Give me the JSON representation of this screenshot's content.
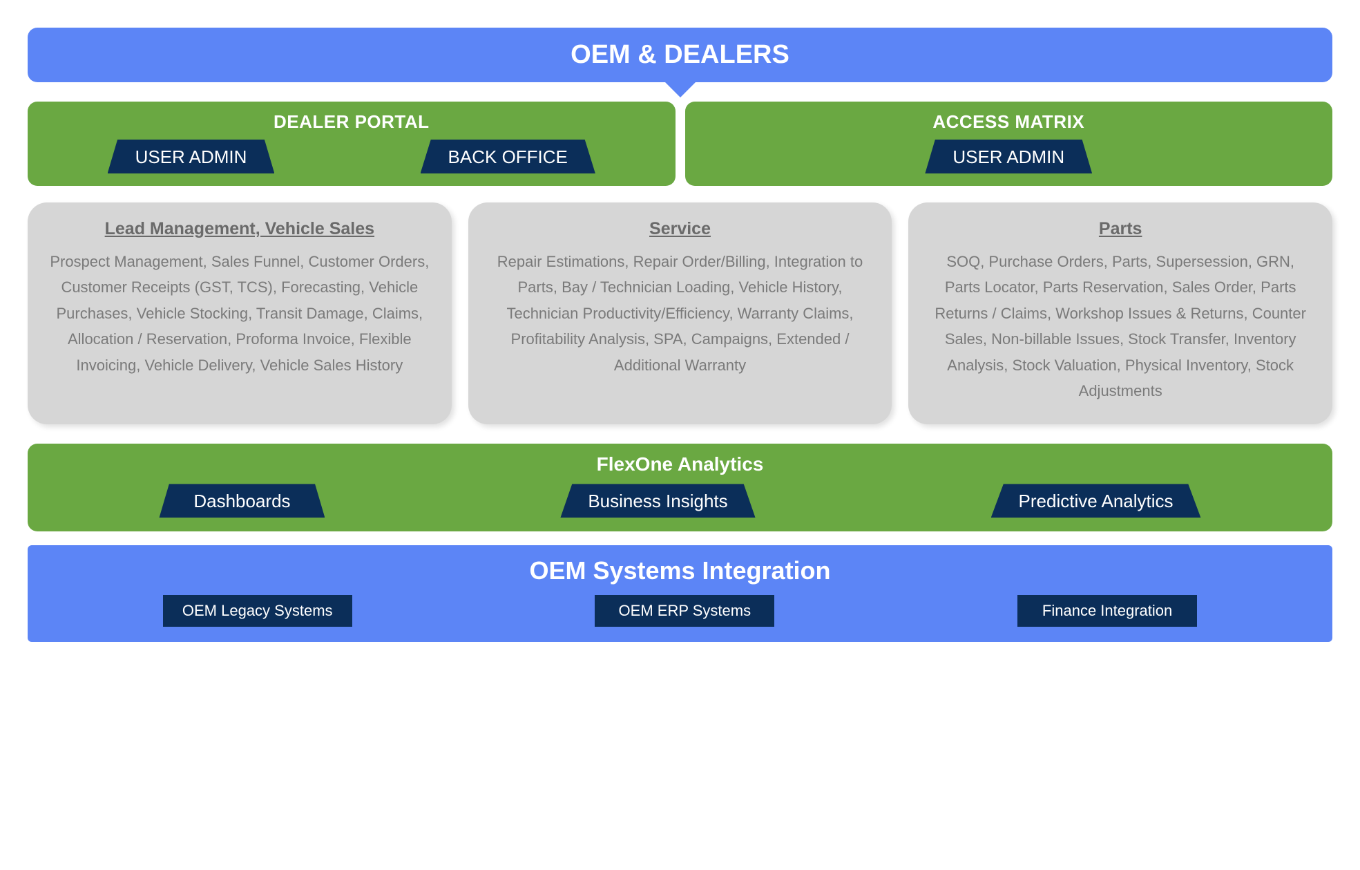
{
  "colors": {
    "blue_banner": "#5c85f6",
    "green_panel": "#6aa842",
    "dark_navy": "#0b2e59",
    "grey_box_bg": "#d6d6d6",
    "grey_title_text": "#6a6a6a",
    "grey_body_text": "#7a7a7a",
    "white": "#ffffff",
    "page_bg": "#ffffff"
  },
  "typography": {
    "banner_fontsize": 38,
    "green_title_fontsize": 26,
    "trap_fontsize": 26,
    "grey_title_fontsize": 25,
    "grey_body_fontsize": 22,
    "flexone_title_fontsize": 28,
    "oem_title_fontsize": 36,
    "rect_chip_fontsize": 22,
    "font_family": "Segoe UI / Helvetica Neue / Arial"
  },
  "layout": {
    "type": "infographic",
    "border_radius_banner": 14,
    "border_radius_grey": 28,
    "grey_box_shadow": "4px 4px 8px rgba(0,0,0,0.12)",
    "trap_clip": "polygon(6% 0, 94% 0, 100% 100%, 0 100%)"
  },
  "top_banner": {
    "label": "OEM & DEALERS"
  },
  "green_header": {
    "left": {
      "title": "DEALER PORTAL",
      "chips": [
        "USER ADMIN",
        "BACK OFFICE"
      ]
    },
    "right": {
      "title": "ACCESS MATRIX",
      "chips": [
        "USER ADMIN"
      ]
    }
  },
  "modules": [
    {
      "title": "Lead Management, Vehicle Sales",
      "body": "Prospect Management, Sales Funnel, Customer Orders, Customer Receipts (GST, TCS), Forecasting, Vehicle Purchases, Vehicle Stocking, Transit Damage, Claims, Allocation / Reservation, Proforma Invoice, Flexible Invoicing, Vehicle Delivery, Vehicle Sales History"
    },
    {
      "title": "Service",
      "body": "Repair Estimations, Repair Order/Billing, Integration to Parts, Bay / Technician Loading, Vehicle History, Technician Productivity/Efficiency, Warranty Claims, Profitability Analysis, SPA, Campaigns, Extended / Additional Warranty"
    },
    {
      "title": "Parts",
      "body": "SOQ, Purchase Orders, Parts, Supersession, GRN, Parts Locator, Parts Reservation, Sales Order, Parts Returns / Claims, Workshop Issues & Returns, Counter Sales, Non-billable Issues, Stock Transfer, Inventory Analysis, Stock Valuation, Physical Inventory, Stock Adjustments"
    }
  ],
  "flexone": {
    "title": "FlexOne Analytics",
    "items": [
      "Dashboards",
      "Business Insights",
      "Predictive Analytics"
    ]
  },
  "oem_integration": {
    "title": "OEM Systems Integration",
    "items": [
      "OEM Legacy Systems",
      "OEM ERP Systems",
      "Finance Integration"
    ]
  }
}
